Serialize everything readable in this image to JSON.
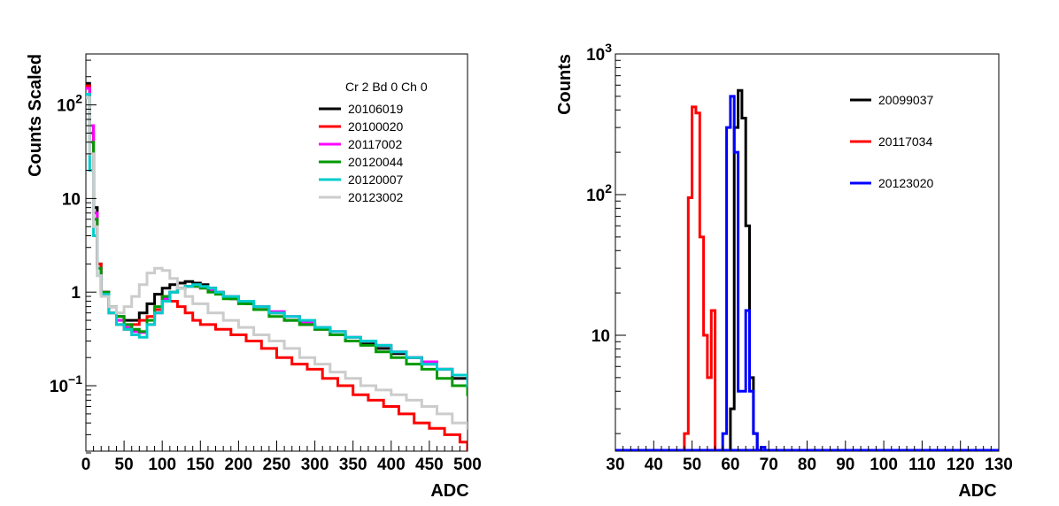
{
  "chart_data": [
    {
      "type": "line",
      "title": "",
      "xlabel": "ADC",
      "ylabel": "Counts Scaled",
      "xlim": [
        0,
        500
      ],
      "ylim": [
        0.02,
        350
      ],
      "yscale": "log",
      "x_ticks": [
        0,
        50,
        100,
        150,
        200,
        250,
        300,
        350,
        400,
        450,
        500
      ],
      "y_ticks": [
        {
          "value": 0.1,
          "base": "10",
          "exp": "−1"
        },
        {
          "value": 1,
          "label": "1"
        },
        {
          "value": 10,
          "label": "10"
        },
        {
          "value": 100,
          "base": "10",
          "exp": "2"
        }
      ],
      "grid": false,
      "legend_position": "top-right",
      "legend_header": "Cr 2 Bd 0 Ch 0",
      "series": [
        {
          "name": "20106019",
          "color": "#000000",
          "x": [
            0,
            5,
            10,
            15,
            20,
            30,
            40,
            50,
            60,
            70,
            80,
            90,
            100,
            110,
            120,
            130,
            140,
            150,
            160,
            170,
            180,
            190,
            200,
            210,
            220,
            240,
            260,
            280,
            300,
            320,
            340,
            360,
            380,
            400,
            420,
            440,
            460,
            480,
            500
          ],
          "y": [
            170,
            60,
            8,
            2,
            1.0,
            0.7,
            0.55,
            0.5,
            0.5,
            0.6,
            0.75,
            0.95,
            1.1,
            1.2,
            1.25,
            1.3,
            1.25,
            1.2,
            1.1,
            1.0,
            0.9,
            0.85,
            0.8,
            0.75,
            0.7,
            0.6,
            0.5,
            0.45,
            0.4,
            0.35,
            0.3,
            0.28,
            0.25,
            0.22,
            0.2,
            0.17,
            0.15,
            0.12,
            0.1
          ]
        },
        {
          "name": "20100020",
          "color": "#ff0000",
          "x": [
            0,
            5,
            10,
            15,
            20,
            30,
            40,
            50,
            60,
            70,
            80,
            90,
            100,
            110,
            120,
            130,
            140,
            150,
            170,
            190,
            210,
            230,
            250,
            270,
            290,
            310,
            330,
            350,
            370,
            390,
            410,
            430,
            450,
            470,
            490,
            500
          ],
          "y": [
            160,
            50,
            6,
            2,
            1.0,
            0.6,
            0.45,
            0.4,
            0.45,
            0.5,
            0.55,
            0.65,
            0.9,
            0.8,
            0.7,
            0.6,
            0.5,
            0.45,
            0.4,
            0.35,
            0.3,
            0.25,
            0.2,
            0.17,
            0.15,
            0.12,
            0.1,
            0.08,
            0.07,
            0.06,
            0.05,
            0.04,
            0.035,
            0.03,
            0.025,
            0.02
          ]
        },
        {
          "name": "20117002",
          "color": "#ff00ff",
          "x": [
            0,
            5,
            10,
            15,
            20,
            30,
            40,
            50,
            60,
            70,
            80,
            90,
            100,
            110,
            120,
            130,
            140,
            150,
            160,
            170,
            180,
            200,
            220,
            240,
            260,
            280,
            300,
            320,
            340,
            360,
            380,
            400,
            420,
            440,
            460,
            480,
            500
          ],
          "y": [
            150,
            60,
            7,
            1.8,
            1.0,
            0.7,
            0.5,
            0.42,
            0.38,
            0.37,
            0.45,
            0.6,
            0.85,
            1.0,
            1.1,
            1.15,
            1.15,
            1.1,
            1.05,
            1.0,
            0.9,
            0.8,
            0.7,
            0.62,
            0.55,
            0.48,
            0.42,
            0.38,
            0.33,
            0.3,
            0.27,
            0.23,
            0.2,
            0.18,
            0.15,
            0.13,
            0.11
          ]
        },
        {
          "name": "20120044",
          "color": "#009900",
          "x": [
            0,
            5,
            10,
            15,
            20,
            30,
            40,
            50,
            60,
            70,
            80,
            90,
            100,
            110,
            120,
            130,
            140,
            150,
            160,
            170,
            180,
            200,
            220,
            240,
            260,
            280,
            300,
            320,
            340,
            360,
            380,
            400,
            420,
            440,
            460,
            480,
            500
          ],
          "y": [
            120,
            40,
            6,
            1.8,
            1.0,
            0.7,
            0.55,
            0.45,
            0.4,
            0.38,
            0.5,
            0.7,
            0.9,
            1.0,
            1.1,
            1.15,
            1.15,
            1.1,
            1.0,
            0.95,
            0.85,
            0.75,
            0.65,
            0.55,
            0.5,
            0.45,
            0.4,
            0.35,
            0.3,
            0.27,
            0.23,
            0.2,
            0.17,
            0.15,
            0.12,
            0.1,
            0.08
          ]
        },
        {
          "name": "20120007",
          "color": "#00cccc",
          "x": [
            0,
            5,
            10,
            15,
            20,
            30,
            40,
            50,
            60,
            70,
            80,
            90,
            100,
            110,
            120,
            130,
            140,
            150,
            160,
            170,
            180,
            200,
            220,
            240,
            260,
            280,
            300,
            320,
            340,
            360,
            380,
            400,
            420,
            440,
            460,
            480,
            500
          ],
          "y": [
            130,
            20,
            4,
            1.5,
            0.95,
            0.6,
            0.45,
            0.4,
            0.35,
            0.33,
            0.45,
            0.6,
            0.8,
            1.0,
            1.1,
            1.15,
            1.2,
            1.15,
            1.1,
            1.0,
            0.9,
            0.8,
            0.7,
            0.6,
            0.55,
            0.5,
            0.42,
            0.38,
            0.33,
            0.3,
            0.27,
            0.23,
            0.2,
            0.17,
            0.15,
            0.13,
            0.1
          ]
        },
        {
          "name": "20123002",
          "color": "#cccccc",
          "x": [
            0,
            5,
            10,
            15,
            20,
            30,
            40,
            50,
            60,
            70,
            80,
            90,
            100,
            110,
            120,
            130,
            140,
            160,
            180,
            200,
            220,
            240,
            260,
            280,
            300,
            320,
            340,
            360,
            380,
            400,
            420,
            440,
            460,
            480,
            500
          ],
          "y": [
            120,
            30,
            5,
            1.5,
            0.9,
            0.7,
            0.6,
            0.7,
            0.9,
            1.2,
            1.6,
            1.8,
            1.7,
            1.4,
            1.1,
            0.9,
            0.75,
            0.6,
            0.5,
            0.42,
            0.35,
            0.3,
            0.25,
            0.2,
            0.17,
            0.14,
            0.12,
            0.1,
            0.09,
            0.08,
            0.07,
            0.06,
            0.05,
            0.04,
            0.035
          ]
        }
      ]
    },
    {
      "type": "line",
      "title": "",
      "xlabel": "ADC",
      "ylabel": "Counts",
      "xlim": [
        30,
        130
      ],
      "ylim": [
        1.5,
        1000
      ],
      "yscale": "log",
      "x_ticks": [
        30,
        40,
        50,
        60,
        70,
        80,
        90,
        100,
        110,
        120,
        130
      ],
      "y_ticks": [
        {
          "value": 10,
          "label": "10"
        },
        {
          "value": 100,
          "base": "10",
          "exp": "2"
        },
        {
          "value": 1000,
          "base": "10",
          "exp": "3"
        }
      ],
      "grid": false,
      "legend_position": "top-right",
      "series": [
        {
          "name": "20099037",
          "color": "#000000",
          "x": [
            58,
            60,
            61,
            62,
            63,
            64,
            65,
            66,
            67,
            68
          ],
          "y": [
            0,
            3,
            300,
            550,
            350,
            60,
            5,
            2,
            0,
            0
          ]
        },
        {
          "name": "20117034",
          "color": "#ff0000",
          "x": [
            47,
            48,
            49,
            50,
            51,
            52,
            53,
            54,
            55,
            56,
            57,
            58
          ],
          "y": [
            0,
            2,
            95,
            420,
            380,
            50,
            10,
            5,
            15,
            1.2,
            0,
            0
          ]
        },
        {
          "name": "20123020",
          "color": "#0000ff",
          "x": [
            56,
            57,
            58,
            59,
            60,
            61,
            62,
            63,
            64,
            65,
            66,
            67,
            68,
            69,
            70
          ],
          "y": [
            0,
            1.2,
            2,
            300,
            500,
            200,
            4,
            4,
            15,
            4,
            2,
            0,
            1.6,
            0,
            0
          ]
        }
      ]
    }
  ]
}
